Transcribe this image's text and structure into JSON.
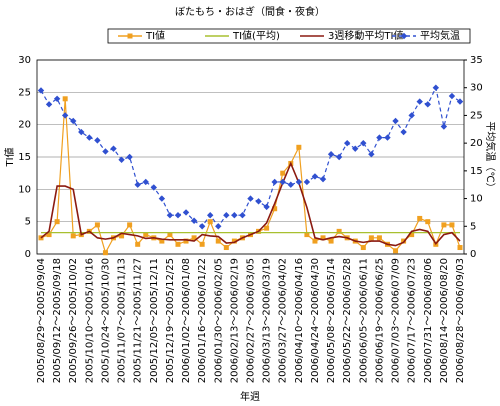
{
  "chart_data": {
    "type": "line",
    "title": "ぼたもち・おはぎ（間食・夜食）",
    "x_label": "年週",
    "y_label": "TI値",
    "y2_label": "平均気温（℃）",
    "categories": [
      "2005/08/29～2005/09/04",
      null,
      "2005/09/12～2005/09/18",
      null,
      "2005/09/26～2005/10/02",
      null,
      "2005/10/10～2005/10/16",
      null,
      "2005/10/24～2005/10/30",
      null,
      "2005/11/07～2005/11/13",
      null,
      "2005/11/21～2005/11/27",
      null,
      "2005/12/05～2005/12/11",
      null,
      "2005/12/19～2005/12/25",
      null,
      "2006/01/02～2006/01/08",
      null,
      "2006/01/16～2006/01/22",
      null,
      "2006/01/30～2006/02/05",
      null,
      "2006/02/13～2006/02/19",
      null,
      "2006/02/27～2006/03/05",
      null,
      "2006/03/13～2006/03/19",
      null,
      "2006/03/27～2006/04/02",
      null,
      "2006/04/10～2006/04/16",
      null,
      "2006/04/24～2006/04/30",
      null,
      "2006/05/08～2006/05/14",
      null,
      "2006/05/22～2006/05/28",
      null,
      "2006/06/05～2006/06/11",
      null,
      "2006/06/19～2006/06/25",
      null,
      "2006/07/03～2006/07/09",
      null,
      "2006/07/17～2006/07/23",
      null,
      "2006/07/31～2006/08/06",
      null,
      "2006/08/14～2006/08/20",
      null,
      "2006/08/28～2006/09/03"
    ],
    "series": [
      {
        "name": "TI値",
        "color": "#f0a020",
        "marker": "square",
        "values": [
          2.5,
          3,
          5,
          24,
          2.8,
          3,
          3.5,
          4.5,
          0.2,
          2.5,
          2.8,
          4.5,
          1.5,
          3,
          2.5,
          2,
          3,
          1.5,
          2,
          2.5,
          1.5,
          5,
          2,
          1,
          2,
          2.5,
          3,
          3.5,
          4,
          7,
          12.5,
          14,
          16.5,
          3,
          2,
          2.5,
          2,
          3.5,
          2.5,
          2,
          1,
          2.5,
          2.5,
          1.5,
          0.5,
          2,
          3,
          5.5,
          5,
          1.5,
          4.5,
          4.5,
          1
        ]
      },
      {
        "name": "TI値(平均)",
        "color": "#a8c030",
        "values": [
          3.3,
          3.3,
          3.3,
          3.3,
          3.3,
          3.3,
          3.3,
          3.3,
          3.3,
          3.3,
          3.3,
          3.3,
          3.3,
          3.3,
          3.3,
          3.3,
          3.3,
          3.3,
          3.3,
          3.3,
          3.3,
          3.3,
          3.3,
          3.3,
          3.3,
          3.3,
          3.3,
          3.3,
          3.3,
          3.3,
          3.3,
          3.3,
          3.3,
          3.3,
          3.3,
          3.3,
          3.3,
          3.3,
          3.3,
          3.3,
          3.3,
          3.3,
          3.3,
          3.3,
          3.3,
          3.3,
          3.3,
          3.3,
          3.3,
          3.3,
          3.3,
          3.3,
          3.3
        ]
      },
      {
        "name": "3週移動平均TI値",
        "color": "#8b1a10",
        "values": [
          2.5,
          3.5,
          10.5,
          10.5,
          10,
          3,
          3.5,
          2.5,
          2.3,
          2.5,
          3.2,
          3,
          2.8,
          2.4,
          2.5,
          2.3,
          2.2,
          2.2,
          2.2,
          2.0,
          3,
          2.8,
          2.7,
          1.7,
          1.8,
          2.5,
          3,
          3.5,
          4.8,
          7.8,
          11,
          14,
          11,
          7.2,
          2.5,
          2.2,
          2.5,
          2.7,
          2.5,
          2,
          1.8,
          2,
          2,
          1.5,
          1.3,
          1.8,
          3.5,
          3.8,
          3.5,
          1.6,
          3,
          3.3,
          2
        ]
      },
      {
        "name": "平均気温",
        "color": "#3050d0",
        "marker": "diamond",
        "dashed": true,
        "axis": "y2",
        "values": [
          29.5,
          27,
          28,
          25,
          24,
          22,
          21,
          20.5,
          18.5,
          19,
          17,
          17.5,
          12.5,
          13,
          12,
          10,
          7,
          7,
          7.5,
          6,
          5,
          7,
          5,
          7,
          7,
          7,
          10,
          9.5,
          8.5,
          13,
          13,
          12.5,
          13,
          13,
          14,
          13.5,
          18,
          17.5,
          20,
          19,
          20,
          18,
          21,
          21,
          24,
          22,
          25,
          27.5,
          27,
          30,
          23,
          28.5,
          27.5
        ]
      }
    ],
    "ylim": [
      0,
      30
    ],
    "yticks": [
      0,
      5,
      10,
      15,
      20,
      25,
      30
    ],
    "y2lim": [
      0,
      35
    ],
    "y2ticks": [
      0,
      5,
      10,
      15,
      20,
      25,
      30,
      35
    ],
    "grid": true
  }
}
